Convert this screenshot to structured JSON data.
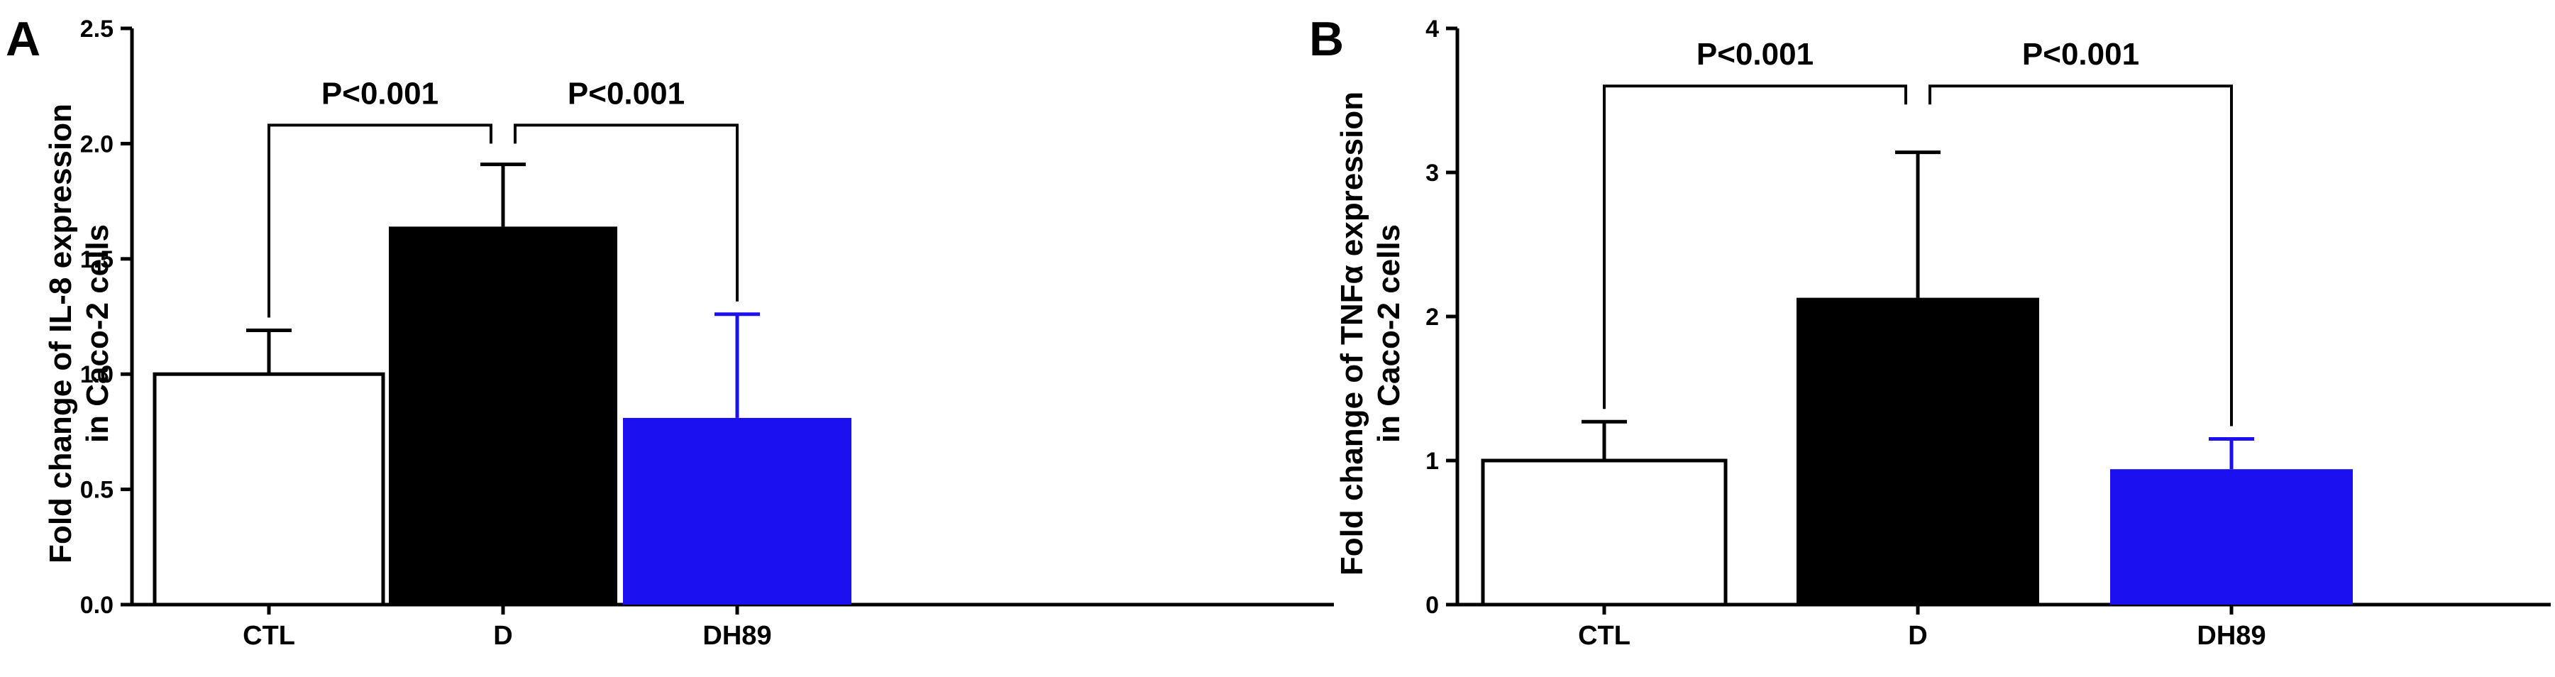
{
  "chart_data": [
    {
      "panel": "A",
      "type": "bar",
      "categories": [
        "CTL",
        "D",
        "DH89"
      ],
      "values": [
        1.0,
        1.64,
        0.81
      ],
      "errors": [
        0.19,
        0.27,
        0.45
      ],
      "colors": [
        "#ffffff",
        "#000000",
        "#1a10f0"
      ],
      "ylabel_lines": [
        "Fold change of IL-8 expression",
        "in Caco-2 cells"
      ],
      "ylim": [
        0,
        2.5
      ],
      "yticks": [
        "0.0",
        "0.5",
        "1.0",
        "1.5",
        "2.0",
        "2.5"
      ],
      "ytick_values": [
        0,
        0.5,
        1.0,
        1.5,
        2.0,
        2.5
      ],
      "comparisons": [
        {
          "from": 0,
          "to": 1,
          "label": "P<0.001",
          "y": 2.08
        },
        {
          "from": 1,
          "to": 2,
          "label": "P<0.001",
          "y": 2.08
        }
      ]
    },
    {
      "panel": "B",
      "type": "bar",
      "categories": [
        "CTL",
        "D",
        "DH89"
      ],
      "values": [
        1.0,
        2.13,
        0.94
      ],
      "errors": [
        0.27,
        1.01,
        0.21
      ],
      "colors": [
        "#ffffff",
        "#000000",
        "#1a10f0"
      ],
      "ylabel_lines": [
        "Fold change of TNFα expression",
        "in Caco-2 cells"
      ],
      "ylim": [
        0,
        4
      ],
      "yticks": [
        "0",
        "1",
        "2",
        "3",
        "4"
      ],
      "ytick_values": [
        0,
        1,
        2,
        3,
        4
      ],
      "comparisons": [
        {
          "from": 0,
          "to": 1,
          "label": "P<0.001",
          "y": 3.6
        },
        {
          "from": 1,
          "to": 2,
          "label": "P<0.001",
          "y": 3.6
        }
      ]
    }
  ]
}
